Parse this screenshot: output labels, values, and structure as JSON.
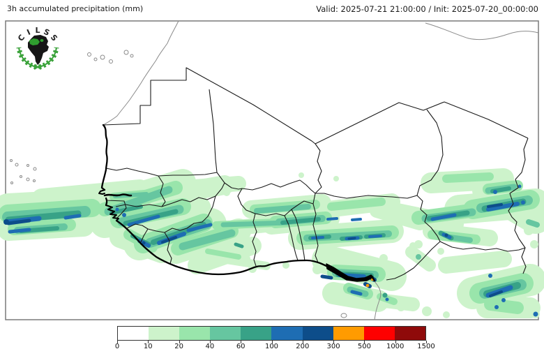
{
  "header": {
    "title": "3h accumulated precipitation (mm)",
    "valid": "Valid: 2025-07-21 21:00:00 / Init: 2025-07-20_00:00:00"
  },
  "logo": {
    "text": "CILSS",
    "wreath_color": "#3aa23a",
    "continent_color": "#161616",
    "region_color": "#2f9e2f"
  },
  "colorbar": {
    "units": "mm",
    "tick_labels": [
      "0",
      "10",
      "20",
      "40",
      "60",
      "100",
      "200",
      "300",
      "500",
      "1000",
      "1500"
    ],
    "segment_colors": [
      "#ffffff",
      "#cdf3cb",
      "#99e5ab",
      "#66c6a0",
      "#38a287",
      "#1e6db3",
      "#0d4d8a",
      "#ff9b00",
      "#fe0000",
      "#8f0a0a"
    ]
  },
  "map": {
    "levels_mm": [
      0,
      10,
      20,
      40,
      60,
      100,
      200,
      300,
      500,
      1000,
      1500
    ],
    "border_color": "#1a1a1a",
    "coast_color": "#000000",
    "neighbor_coast_color": "#8a8a8a",
    "frame_color": "#7a7a7a"
  }
}
